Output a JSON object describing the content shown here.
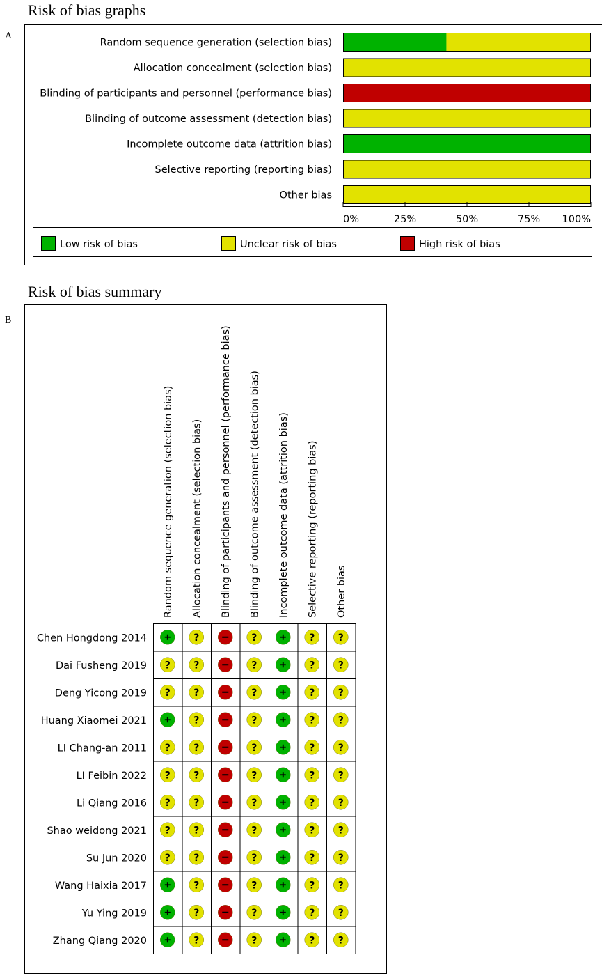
{
  "panel_a": {
    "heading": "Risk of bias graphs",
    "letter": "A"
  },
  "panel_b": {
    "heading": "Risk of bias summary",
    "letter": "B"
  },
  "colors": {
    "low": "#00b200",
    "unclear": "#e2e200",
    "high": "#c00000"
  },
  "chart_data": [
    {
      "type": "bar",
      "stacked": true,
      "orientation": "horizontal",
      "categories": [
        "Random sequence generation (selection bias)",
        "Allocation concealment (selection bias)",
        "Blinding of participants and personnel (performance bias)",
        "Blinding of outcome assessment (detection bias)",
        "Incomplete outcome data (attrition bias)",
        "Selective reporting (reporting bias)",
        "Other bias"
      ],
      "series": [
        {
          "name": "Low risk of bias",
          "values": [
            41.7,
            0,
            0,
            0,
            100,
            0,
            0
          ]
        },
        {
          "name": "Unclear risk of bias",
          "values": [
            58.3,
            100,
            0,
            100,
            0,
            100,
            100
          ]
        },
        {
          "name": "High risk of bias",
          "values": [
            0,
            0,
            100,
            0,
            0,
            0,
            0
          ]
        }
      ],
      "xticks": [
        "0%",
        "25%",
        "50%",
        "75%",
        "100%"
      ],
      "xlim": [
        0,
        100
      ],
      "legend": "bottom"
    },
    {
      "type": "table",
      "columns": [
        "Random sequence generation (selection bias)",
        "Allocation concealment (selection bias)",
        "Blinding of participants and personnel (performance bias)",
        "Blinding of outcome assessment (detection bias)",
        "Incomplete outcome data (attrition bias)",
        "Selective reporting (reporting bias)",
        "Other bias"
      ],
      "rows": [
        {
          "study": "Chen Hongdong 2014",
          "ratings": [
            "+",
            "?",
            "-",
            "?",
            "+",
            "?",
            "?"
          ]
        },
        {
          "study": "Dai Fusheng 2019",
          "ratings": [
            "?",
            "?",
            "-",
            "?",
            "+",
            "?",
            "?"
          ]
        },
        {
          "study": "Deng Yicong 2019",
          "ratings": [
            "?",
            "?",
            "-",
            "?",
            "+",
            "?",
            "?"
          ]
        },
        {
          "study": "Huang Xiaomei 2021",
          "ratings": [
            "+",
            "?",
            "-",
            "?",
            "+",
            "?",
            "?"
          ]
        },
        {
          "study": "LI Chang-an 2011",
          "ratings": [
            "?",
            "?",
            "-",
            "?",
            "+",
            "?",
            "?"
          ]
        },
        {
          "study": "LI Feibin 2022",
          "ratings": [
            "?",
            "?",
            "-",
            "?",
            "+",
            "?",
            "?"
          ]
        },
        {
          "study": "Li Qiang 2016",
          "ratings": [
            "?",
            "?",
            "-",
            "?",
            "+",
            "?",
            "?"
          ]
        },
        {
          "study": "Shao weidong 2021",
          "ratings": [
            "?",
            "?",
            "-",
            "?",
            "+",
            "?",
            "?"
          ]
        },
        {
          "study": "Su Jun 2020",
          "ratings": [
            "?",
            "?",
            "-",
            "?",
            "+",
            "?",
            "?"
          ]
        },
        {
          "study": "Wang Haixia 2017",
          "ratings": [
            "+",
            "?",
            "-",
            "?",
            "+",
            "?",
            "?"
          ]
        },
        {
          "study": "Yu Ying 2019",
          "ratings": [
            "+",
            "?",
            "-",
            "?",
            "+",
            "?",
            "?"
          ]
        },
        {
          "study": "Zhang Qiang 2020",
          "ratings": [
            "+",
            "?",
            "-",
            "?",
            "+",
            "?",
            "?"
          ]
        }
      ]
    }
  ]
}
